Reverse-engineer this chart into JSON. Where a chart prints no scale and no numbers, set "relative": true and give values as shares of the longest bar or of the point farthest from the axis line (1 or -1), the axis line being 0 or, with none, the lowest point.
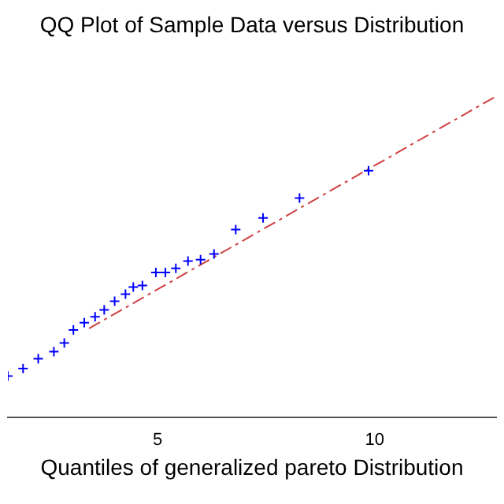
{
  "chart_data": {
    "type": "scatter",
    "title": "QQ Plot of Sample Data versus Distribution",
    "xlabel": "Quantiles of generalized pareto Distribution",
    "relative": true,
    "xlim": [
      1.55,
      12.8
    ],
    "xticks": [
      5,
      10
    ],
    "grid": false,
    "legend": false,
    "series": [
      {
        "type": "scatter",
        "color": "#0000ff",
        "marker": "cross",
        "x": [
          1.55,
          1.9,
          2.25,
          2.61,
          2.85,
          3.06,
          3.31,
          3.56,
          3.77,
          4.01,
          4.26,
          4.44,
          4.65,
          4.96,
          5.18,
          5.42,
          5.7,
          5.99,
          6.3,
          6.8,
          7.43,
          8.27,
          9.86
        ],
        "values": [
          0.129,
          0.152,
          0.183,
          0.205,
          0.232,
          0.272,
          0.295,
          0.313,
          0.335,
          0.362,
          0.384,
          0.406,
          0.411,
          0.451,
          0.451,
          0.464,
          0.487,
          0.491,
          0.509,
          0.585,
          0.621,
          0.683,
          0.768
        ]
      },
      {
        "type": "line",
        "color": "#d04040",
        "line_style": "dashed",
        "marker": "none",
        "x": [
          3.42,
          12.8
        ],
        "values": [
          0.277,
          1.0
        ]
      }
    ]
  }
}
